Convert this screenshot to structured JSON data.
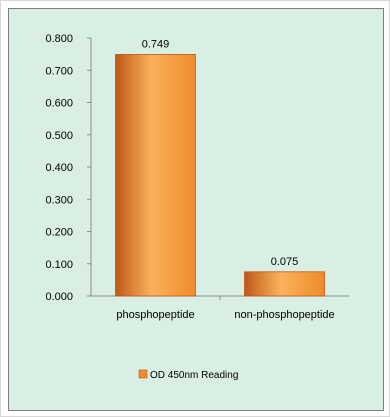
{
  "chart_data": {
    "type": "bar",
    "categories": [
      "phosphopeptide",
      "non-phosphopeptide"
    ],
    "series": [
      {
        "name": "OD 450nm Reading",
        "values": [
          0.749,
          0.075
        ]
      }
    ],
    "data_labels": [
      "0.749",
      "0.075"
    ],
    "yticks": [
      "0.000",
      "0.100",
      "0.200",
      "0.300",
      "0.400",
      "0.500",
      "0.600",
      "0.700",
      "0.800"
    ],
    "ylim": [
      0,
      0.8
    ],
    "grid": false,
    "legend_position": "bottom",
    "colors": {
      "bar_dark": "#c0571a",
      "bar_mid": "#f08a2c",
      "bar_light": "#f9b35a",
      "plot_background": "#d9efe3"
    }
  }
}
